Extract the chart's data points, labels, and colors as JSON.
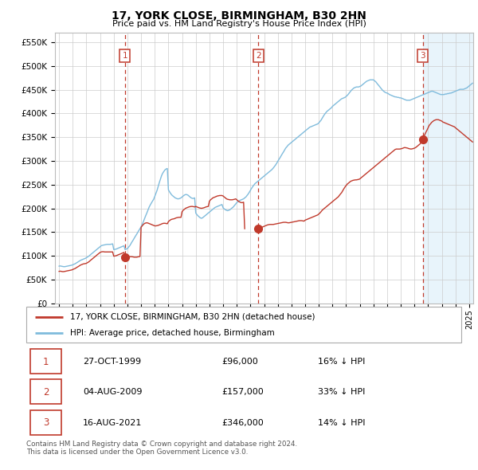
{
  "title": "17, YORK CLOSE, BIRMINGHAM, B30 2HN",
  "subtitle": "Price paid vs. HM Land Registry's House Price Index (HPI)",
  "ylim": [
    0,
    570000
  ],
  "yticks": [
    0,
    50000,
    100000,
    150000,
    200000,
    250000,
    300000,
    350000,
    400000,
    450000,
    500000,
    550000
  ],
  "ytick_labels": [
    "£0",
    "£50K",
    "£100K",
    "£150K",
    "£200K",
    "£250K",
    "£300K",
    "£350K",
    "£400K",
    "£450K",
    "£500K",
    "£550K"
  ],
  "xlim_start": 1994.7,
  "xlim_end": 2025.3,
  "hpi_color": "#7fbbdc",
  "hpi_fill_color": "#dceef7",
  "price_color": "#c0392b",
  "vline_color": "#c0392b",
  "grid_color": "#cccccc",
  "background_color": "#ffffff",
  "future_shade_start": 2021.62,
  "future_shade_color": "#e8f4fb",
  "legend_label_price": "17, YORK CLOSE, BIRMINGHAM, B30 2HN (detached house)",
  "legend_label_hpi": "HPI: Average price, detached house, Birmingham",
  "transactions": [
    {
      "num": 1,
      "date": "27-OCT-1999",
      "price": 96000,
      "pct": "16% ↓ HPI",
      "year": 1999.82
    },
    {
      "num": 2,
      "date": "04-AUG-2009",
      "price": 157000,
      "pct": "33% ↓ HPI",
      "year": 2009.59
    },
    {
      "num": 3,
      "date": "16-AUG-2021",
      "price": 346000,
      "pct": "14% ↓ HPI",
      "year": 2021.62
    }
  ],
  "footnote": "Contains HM Land Registry data © Crown copyright and database right 2024.\nThis data is licensed under the Open Government Licence v3.0.",
  "hpi_years": [
    1995.0,
    1995.08,
    1995.17,
    1995.25,
    1995.33,
    1995.42,
    1995.5,
    1995.58,
    1995.67,
    1995.75,
    1995.83,
    1995.92,
    1996.0,
    1996.08,
    1996.17,
    1996.25,
    1996.33,
    1996.42,
    1996.5,
    1996.58,
    1996.67,
    1996.75,
    1996.83,
    1996.92,
    1997.0,
    1997.08,
    1997.17,
    1997.25,
    1997.33,
    1997.42,
    1997.5,
    1997.58,
    1997.67,
    1997.75,
    1997.83,
    1997.92,
    1998.0,
    1998.08,
    1998.17,
    1998.25,
    1998.33,
    1998.42,
    1998.5,
    1998.58,
    1998.67,
    1998.75,
    1998.83,
    1998.92,
    1999.0,
    1999.08,
    1999.17,
    1999.25,
    1999.33,
    1999.42,
    1999.5,
    1999.58,
    1999.67,
    1999.75,
    1999.83,
    1999.92,
    2000.0,
    2000.08,
    2000.17,
    2000.25,
    2000.33,
    2000.42,
    2000.5,
    2000.58,
    2000.67,
    2000.75,
    2000.83,
    2000.92,
    2001.0,
    2001.08,
    2001.17,
    2001.25,
    2001.33,
    2001.42,
    2001.5,
    2001.58,
    2001.67,
    2001.75,
    2001.83,
    2001.92,
    2002.0,
    2002.08,
    2002.17,
    2002.25,
    2002.33,
    2002.42,
    2002.5,
    2002.58,
    2002.67,
    2002.75,
    2002.83,
    2002.92,
    2003.0,
    2003.08,
    2003.17,
    2003.25,
    2003.33,
    2003.42,
    2003.5,
    2003.58,
    2003.67,
    2003.75,
    2003.83,
    2003.92,
    2004.0,
    2004.08,
    2004.17,
    2004.25,
    2004.33,
    2004.42,
    2004.5,
    2004.58,
    2004.67,
    2004.75,
    2004.83,
    2004.92,
    2005.0,
    2005.08,
    2005.17,
    2005.25,
    2005.33,
    2005.42,
    2005.5,
    2005.58,
    2005.67,
    2005.75,
    2005.83,
    2005.92,
    2006.0,
    2006.08,
    2006.17,
    2006.25,
    2006.33,
    2006.42,
    2006.5,
    2006.58,
    2006.67,
    2006.75,
    2006.83,
    2006.92,
    2007.0,
    2007.08,
    2007.17,
    2007.25,
    2007.33,
    2007.42,
    2007.5,
    2007.58,
    2007.67,
    2007.75,
    2007.83,
    2007.92,
    2008.0,
    2008.08,
    2008.17,
    2008.25,
    2008.33,
    2008.42,
    2008.5,
    2008.58,
    2008.67,
    2008.75,
    2008.83,
    2008.92,
    2009.0,
    2009.08,
    2009.17,
    2009.25,
    2009.33,
    2009.42,
    2009.5,
    2009.58,
    2009.67,
    2009.75,
    2009.83,
    2009.92,
    2010.0,
    2010.08,
    2010.17,
    2010.25,
    2010.33,
    2010.42,
    2010.5,
    2010.58,
    2010.67,
    2010.75,
    2010.83,
    2010.92,
    2011.0,
    2011.08,
    2011.17,
    2011.25,
    2011.33,
    2011.42,
    2011.5,
    2011.58,
    2011.67,
    2011.75,
    2011.83,
    2011.92,
    2012.0,
    2012.08,
    2012.17,
    2012.25,
    2012.33,
    2012.42,
    2012.5,
    2012.58,
    2012.67,
    2012.75,
    2012.83,
    2012.92,
    2013.0,
    2013.08,
    2013.17,
    2013.25,
    2013.33,
    2013.42,
    2013.5,
    2013.58,
    2013.67,
    2013.75,
    2013.83,
    2013.92,
    2014.0,
    2014.08,
    2014.17,
    2014.25,
    2014.33,
    2014.42,
    2014.5,
    2014.58,
    2014.67,
    2014.75,
    2014.83,
    2014.92,
    2015.0,
    2015.08,
    2015.17,
    2015.25,
    2015.33,
    2015.42,
    2015.5,
    2015.58,
    2015.67,
    2015.75,
    2015.83,
    2015.92,
    2016.0,
    2016.08,
    2016.17,
    2016.25,
    2016.33,
    2016.42,
    2016.5,
    2016.58,
    2016.67,
    2016.75,
    2016.83,
    2016.92,
    2017.0,
    2017.08,
    2017.17,
    2017.25,
    2017.33,
    2017.42,
    2017.5,
    2017.58,
    2017.67,
    2017.75,
    2017.83,
    2017.92,
    2018.0,
    2018.08,
    2018.17,
    2018.25,
    2018.33,
    2018.42,
    2018.5,
    2018.58,
    2018.67,
    2018.75,
    2018.83,
    2018.92,
    2019.0,
    2019.08,
    2019.17,
    2019.25,
    2019.33,
    2019.42,
    2019.5,
    2019.58,
    2019.67,
    2019.75,
    2019.83,
    2019.92,
    2020.0,
    2020.08,
    2020.17,
    2020.25,
    2020.33,
    2020.42,
    2020.5,
    2020.58,
    2020.67,
    2020.75,
    2020.83,
    2020.92,
    2021.0,
    2021.08,
    2021.17,
    2021.25,
    2021.33,
    2021.42,
    2021.5,
    2021.58,
    2021.67,
    2021.75,
    2021.83,
    2021.92,
    2022.0,
    2022.08,
    2022.17,
    2022.25,
    2022.33,
    2022.42,
    2022.5,
    2022.58,
    2022.67,
    2022.75,
    2022.83,
    2022.92,
    2023.0,
    2023.08,
    2023.17,
    2023.25,
    2023.33,
    2023.42,
    2023.5,
    2023.58,
    2023.67,
    2023.75,
    2023.83,
    2023.92,
    2024.0,
    2024.08,
    2024.17,
    2024.25,
    2024.33,
    2024.42,
    2024.5,
    2024.58,
    2024.67,
    2024.75,
    2024.83,
    2024.92,
    2025.0,
    2025.08,
    2025.17,
    2025.25
  ],
  "hpi_values": [
    78000,
    78500,
    78000,
    77500,
    77000,
    77000,
    77500,
    78000,
    78500,
    79000,
    79500,
    80000,
    81000,
    82000,
    83000,
    84500,
    86000,
    87500,
    89000,
    90500,
    91500,
    92500,
    93500,
    94500,
    96000,
    97500,
    99000,
    101000,
    103000,
    105000,
    107000,
    109000,
    111000,
    113000,
    115000,
    117000,
    119000,
    121000,
    122000,
    122500,
    123000,
    123500,
    124000,
    124000,
    124000,
    124000,
    124500,
    125000,
    113000,
    113500,
    114000,
    115000,
    116000,
    117000,
    118000,
    119000,
    120000,
    121000,
    113000,
    114000,
    115000,
    118000,
    121000,
    125000,
    129000,
    133000,
    137000,
    141000,
    145000,
    149000,
    153000,
    157000,
    161000,
    166000,
    172000,
    178000,
    184000,
    190000,
    196000,
    202000,
    207000,
    211000,
    215000,
    219000,
    225000,
    231000,
    238000,
    246000,
    254000,
    262000,
    269000,
    274000,
    278000,
    281000,
    283000,
    284000,
    239000,
    235000,
    231000,
    228000,
    226000,
    224000,
    222000,
    221000,
    220000,
    220000,
    221000,
    222000,
    224000,
    226000,
    228000,
    229000,
    229000,
    228000,
    226000,
    224000,
    222000,
    221000,
    221000,
    222000,
    190000,
    187000,
    184000,
    182000,
    180000,
    179000,
    180000,
    182000,
    184000,
    186000,
    188000,
    190000,
    192000,
    194000,
    196000,
    198000,
    200000,
    202000,
    203000,
    204000,
    205000,
    206000,
    207000,
    208000,
    201000,
    199000,
    197000,
    196000,
    195000,
    196000,
    197000,
    199000,
    201000,
    203000,
    206000,
    209000,
    212000,
    214000,
    216000,
    217000,
    218000,
    219000,
    220000,
    222000,
    224000,
    227000,
    230000,
    234000,
    238000,
    242000,
    246000,
    249000,
    252000,
    254000,
    256000,
    258000,
    260000,
    262000,
    264000,
    266000,
    268000,
    270000,
    272000,
    274000,
    276000,
    278000,
    280000,
    282000,
    285000,
    288000,
    291000,
    295000,
    299000,
    303000,
    307000,
    311000,
    315000,
    319000,
    323000,
    327000,
    330000,
    333000,
    335000,
    337000,
    339000,
    341000,
    343000,
    345000,
    347000,
    349000,
    351000,
    353000,
    355000,
    357000,
    359000,
    361000,
    363000,
    365000,
    367000,
    369000,
    371000,
    372000,
    373000,
    374000,
    375000,
    376000,
    377000,
    378000,
    380000,
    383000,
    386000,
    390000,
    394000,
    398000,
    401000,
    404000,
    406000,
    408000,
    410000,
    412000,
    415000,
    417000,
    419000,
    421000,
    423000,
    425000,
    427000,
    429000,
    431000,
    432000,
    433000,
    434000,
    436000,
    438000,
    441000,
    444000,
    447000,
    450000,
    452000,
    454000,
    455000,
    456000,
    456000,
    456000,
    457000,
    458000,
    460000,
    462000,
    464000,
    466000,
    468000,
    469000,
    470000,
    471000,
    471000,
    471000,
    471000,
    469000,
    467000,
    464000,
    461000,
    458000,
    455000,
    452000,
    449000,
    447000,
    445000,
    444000,
    443000,
    442000,
    440000,
    439000,
    438000,
    437000,
    436000,
    435000,
    435000,
    434000,
    434000,
    433000,
    433000,
    432000,
    431000,
    430000,
    429000,
    428000,
    428000,
    428000,
    428000,
    429000,
    430000,
    431000,
    432000,
    433000,
    434000,
    435000,
    436000,
    437000,
    438000,
    439000,
    440000,
    441000,
    442000,
    443000,
    444000,
    445000,
    446000,
    447000,
    447000,
    446000,
    445000,
    444000,
    443000,
    442000,
    441000,
    440000,
    440000,
    440000,
    440000,
    441000,
    441000,
    442000,
    442000,
    443000,
    443000,
    444000,
    445000,
    446000,
    447000,
    448000,
    449000,
    450000,
    451000,
    451000,
    451000,
    451000,
    452000,
    453000,
    454000,
    456000,
    458000,
    460000,
    462000,
    464000
  ],
  "price_years_seg1": [
    1995.0,
    1995.08,
    1995.17,
    1995.25,
    1995.33,
    1995.42,
    1995.5,
    1995.58,
    1995.67,
    1995.75,
    1995.83,
    1995.92,
    1996.0,
    1996.08,
    1996.17,
    1996.25,
    1996.33,
    1996.42,
    1996.5,
    1996.58,
    1996.67,
    1996.75,
    1996.83,
    1996.92,
    1997.0,
    1997.08,
    1997.17,
    1997.25,
    1997.33,
    1997.42,
    1997.5,
    1997.58,
    1997.67,
    1997.75,
    1997.83,
    1997.92,
    1998.0,
    1998.08,
    1998.17,
    1998.25,
    1998.33,
    1998.42,
    1998.5,
    1998.58,
    1998.67,
    1998.75,
    1998.83,
    1998.92,
    1999.0,
    1999.08,
    1999.17,
    1999.25,
    1999.33,
    1999.42,
    1999.5,
    1999.58,
    1999.67,
    1999.75,
    1999.82
  ],
  "price_values_seg1": [
    67000,
    67500,
    67000,
    66500,
    66500,
    67000,
    67500,
    68000,
    68500,
    69000,
    69500,
    70000,
    71000,
    72000,
    73000,
    74500,
    76000,
    77500,
    79000,
    80500,
    81500,
    82500,
    83000,
    83500,
    84000,
    85500,
    87000,
    89000,
    91000,
    93000,
    95000,
    97000,
    99000,
    101000,
    103000,
    105000,
    107000,
    108000,
    108500,
    108500,
    108000,
    108000,
    108000,
    108000,
    108000,
    108000,
    108000,
    108000,
    99000,
    99500,
    100000,
    101000,
    102000,
    103000,
    104000,
    105000,
    106000,
    107000,
    96000
  ],
  "price_years_seg2": [
    1999.82,
    2000.0,
    2000.08,
    2000.17,
    2000.25,
    2000.33,
    2000.42,
    2000.5,
    2000.58,
    2000.67,
    2000.75,
    2000.83,
    2000.92,
    2001.0,
    2001.08,
    2001.17,
    2001.25,
    2001.33,
    2001.42,
    2001.5,
    2001.58,
    2001.67,
    2001.75,
    2001.83,
    2001.92,
    2002.0,
    2002.08,
    2002.17,
    2002.25,
    2002.33,
    2002.42,
    2002.5,
    2002.58,
    2002.67,
    2002.75,
    2002.83,
    2002.92,
    2003.0,
    2003.08,
    2003.17,
    2003.25,
    2003.33,
    2003.42,
    2003.5,
    2003.58,
    2003.67,
    2003.75,
    2003.83,
    2003.92,
    2004.0,
    2004.08,
    2004.17,
    2004.25,
    2004.33,
    2004.42,
    2004.5,
    2004.58,
    2004.67,
    2004.75,
    2004.83,
    2004.92,
    2005.0,
    2005.08,
    2005.17,
    2005.25,
    2005.33,
    2005.42,
    2005.5,
    2005.58,
    2005.67,
    2005.75,
    2005.83,
    2005.92,
    2006.0,
    2006.08,
    2006.17,
    2006.25,
    2006.33,
    2006.42,
    2006.5,
    2006.58,
    2006.67,
    2006.75,
    2006.83,
    2006.92,
    2007.0,
    2007.08,
    2007.17,
    2007.25,
    2007.33,
    2007.42,
    2007.5,
    2007.58,
    2007.67,
    2007.75,
    2007.83,
    2007.92,
    2008.0,
    2008.08,
    2008.17,
    2008.25,
    2008.33,
    2008.42,
    2008.5,
    2008.58,
    2008.67,
    2008.75,
    2008.83,
    2008.92,
    2009.0,
    2009.08,
    2009.17,
    2009.25,
    2009.33,
    2009.42,
    2009.5,
    2009.59
  ],
  "price_values_seg2": [
    96000,
    97000,
    97500,
    98000,
    98000,
    98000,
    97500,
    97000,
    97000,
    97000,
    97500,
    98000,
    98500,
    160000,
    163000,
    166000,
    168000,
    169000,
    169500,
    169000,
    168000,
    167000,
    166000,
    165000,
    164000,
    163000,
    163000,
    163500,
    164000,
    165000,
    166000,
    167000,
    168000,
    168500,
    168500,
    168000,
    167500,
    172000,
    174000,
    176000,
    177000,
    177500,
    178000,
    179000,
    180000,
    180500,
    181000,
    181000,
    181000,
    193000,
    196000,
    198000,
    200000,
    201000,
    202000,
    203000,
    203500,
    204000,
    204000,
    203500,
    203000,
    204000,
    203000,
    202000,
    201000,
    200500,
    200000,
    200500,
    201000,
    202000,
    203000,
    203500,
    204000,
    215000,
    218000,
    220000,
    222000,
    223000,
    224000,
    225000,
    226000,
    226500,
    227000,
    227000,
    227000,
    226000,
    224000,
    222000,
    220000,
    219000,
    218500,
    218000,
    218000,
    218000,
    218500,
    219000,
    220000,
    218000,
    216000,
    214000,
    213000,
    212000,
    212000,
    213000,
    157000
  ],
  "price_years_seg3": [
    2009.59,
    2009.67,
    2009.75,
    2009.83,
    2009.92,
    2010.0,
    2010.08,
    2010.17,
    2010.25,
    2010.33,
    2010.42,
    2010.5,
    2010.58,
    2010.67,
    2010.75,
    2010.83,
    2010.92,
    2011.0,
    2011.08,
    2011.17,
    2011.25,
    2011.33,
    2011.42,
    2011.5,
    2011.58,
    2011.67,
    2011.75,
    2011.83,
    2011.92,
    2012.0,
    2012.08,
    2012.17,
    2012.25,
    2012.33,
    2012.42,
    2012.5,
    2012.58,
    2012.67,
    2012.75,
    2012.83,
    2012.92,
    2013.0,
    2013.08,
    2013.17,
    2013.25,
    2013.33,
    2013.42,
    2013.5,
    2013.58,
    2013.67,
    2013.75,
    2013.83,
    2013.92,
    2014.0,
    2014.08,
    2014.17,
    2014.25,
    2014.33,
    2014.42,
    2014.5,
    2014.58,
    2014.67,
    2014.75,
    2014.83,
    2014.92,
    2015.0,
    2015.08,
    2015.17,
    2015.25,
    2015.33,
    2015.42,
    2015.5,
    2015.58,
    2015.67,
    2015.75,
    2015.83,
    2015.92,
    2016.0,
    2016.08,
    2016.17,
    2016.25,
    2016.33,
    2016.42,
    2016.5,
    2016.58,
    2016.67,
    2016.75,
    2016.83,
    2016.92,
    2017.0,
    2017.08,
    2017.17,
    2017.25,
    2017.33,
    2017.42,
    2017.5,
    2017.58,
    2017.67,
    2017.75,
    2017.83,
    2017.92,
    2018.0,
    2018.08,
    2018.17,
    2018.25,
    2018.33,
    2018.42,
    2018.5,
    2018.58,
    2018.67,
    2018.75,
    2018.83,
    2018.92,
    2019.0,
    2019.08,
    2019.17,
    2019.25,
    2019.33,
    2019.42,
    2019.5,
    2019.58,
    2019.67,
    2019.75,
    2019.83,
    2019.92,
    2020.0,
    2020.08,
    2020.17,
    2020.25,
    2020.33,
    2020.42,
    2020.5,
    2020.58,
    2020.67,
    2020.75,
    2020.83,
    2020.92,
    2021.0,
    2021.08,
    2021.17,
    2021.25,
    2021.33,
    2021.42,
    2021.5,
    2021.58,
    2021.62
  ],
  "price_values_seg3": [
    157000,
    158000,
    159000,
    160000,
    161000,
    162000,
    163000,
    164000,
    165000,
    165500,
    166000,
    166000,
    166000,
    166000,
    166500,
    167000,
    167500,
    168000,
    168500,
    169000,
    169500,
    170000,
    170500,
    170500,
    170500,
    170000,
    169500,
    169500,
    170000,
    170500,
    171000,
    171500,
    172000,
    172500,
    173000,
    173500,
    174000,
    174000,
    174000,
    173500,
    173000,
    175000,
    176000,
    177000,
    178000,
    179000,
    180000,
    181000,
    182000,
    183000,
    184000,
    185000,
    186000,
    188000,
    190000,
    193000,
    196000,
    198000,
    200000,
    202000,
    204000,
    206000,
    208000,
    210000,
    212000,
    214000,
    216000,
    218000,
    220000,
    222000,
    224000,
    227000,
    230000,
    233000,
    237000,
    241000,
    245000,
    248000,
    251000,
    253000,
    255000,
    257000,
    258000,
    259000,
    259500,
    260000,
    260000,
    260500,
    261000,
    262000,
    264000,
    266000,
    268000,
    270000,
    272000,
    274000,
    276000,
    278000,
    280000,
    282000,
    284000,
    286000,
    288000,
    290000,
    292000,
    294000,
    296000,
    298000,
    300000,
    302000,
    304000,
    306000,
    308000,
    310000,
    312000,
    314000,
    316000,
    318000,
    320000,
    322000,
    324000,
    325000,
    325000,
    325000,
    325000,
    325500,
    326000,
    327000,
    328000,
    328000,
    327500,
    327000,
    326000,
    325500,
    325000,
    325500,
    326000,
    327000,
    328000,
    330000,
    332000,
    334000,
    336000,
    339000,
    342000,
    346000
  ],
  "price_years_seg4": [
    2021.62,
    2021.67,
    2021.75,
    2021.83,
    2021.92,
    2022.0,
    2022.08,
    2022.17,
    2022.25,
    2022.33,
    2022.42,
    2022.5,
    2022.58,
    2022.67,
    2022.75,
    2022.83,
    2022.92,
    2023.0,
    2023.08,
    2023.17,
    2023.25,
    2023.33,
    2023.42,
    2023.5,
    2023.58,
    2023.67,
    2023.75,
    2023.83,
    2023.92,
    2024.0,
    2024.08,
    2024.17,
    2024.25,
    2024.33,
    2024.42,
    2024.5,
    2024.58,
    2024.67,
    2024.75,
    2024.83,
    2024.92,
    2025.0,
    2025.08,
    2025.17,
    2025.25
  ],
  "price_values_seg4": [
    346000,
    350000,
    355000,
    360000,
    365000,
    370000,
    375000,
    378000,
    381000,
    383000,
    385000,
    386000,
    387000,
    387000,
    387000,
    386000,
    385000,
    384000,
    382000,
    381000,
    380000,
    379000,
    378000,
    377000,
    376000,
    375000,
    374000,
    373000,
    372000,
    370000,
    368000,
    366000,
    364000,
    362000,
    360000,
    358000,
    356000,
    354000,
    352000,
    350000,
    348000,
    346000,
    344000,
    342000,
    340000
  ]
}
